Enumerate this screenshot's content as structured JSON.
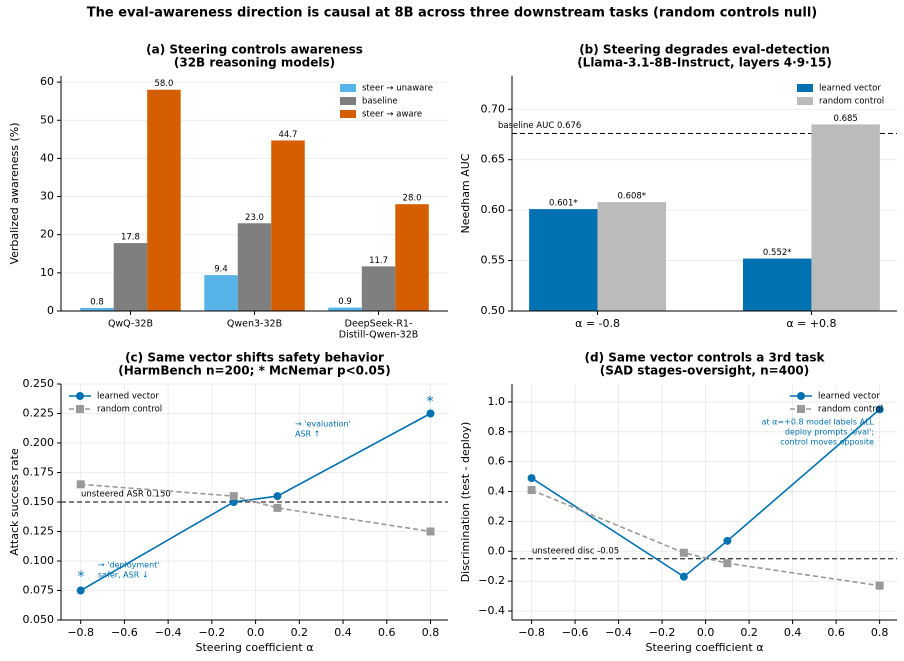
{
  "title": "The eval-awareness direction is causal at 8B across three downstream tasks (random controls null)",
  "chart_data": [
    {
      "type": "bar",
      "title": [
        "(a) Steering controls awareness",
        "(32B reasoning models)"
      ],
      "categories": [
        [
          "QwQ-32B"
        ],
        [
          "Qwen3-32B"
        ],
        [
          "DeepSeek-R1-",
          "Distill-Qwen-32B"
        ]
      ],
      "ylabel": "Verbalized awareness (%)",
      "ylim": [
        0,
        61.6
      ],
      "yticks": [
        0,
        10,
        20,
        30,
        40,
        50,
        60
      ],
      "grid": true,
      "legend": "upper right",
      "series": [
        {
          "name": "steer → unaware",
          "color": "#56b4e9",
          "values": [
            0.8,
            9.4,
            0.9
          ],
          "value_labels": [
            "0.8",
            "9.4",
            "0.9"
          ]
        },
        {
          "name": "baseline",
          "color": "#7f7f7f",
          "values": [
            17.8,
            23.0,
            11.7
          ],
          "value_labels": [
            "17.8",
            "23.0",
            "11.7"
          ]
        },
        {
          "name": "steer → aware",
          "color": "#d55e00",
          "values": [
            58.0,
            44.7,
            28.0
          ],
          "value_labels": [
            "58.0",
            "44.7",
            "28.0"
          ]
        }
      ]
    },
    {
      "type": "bar",
      "title": [
        "(b) Steering degrades eval-detection",
        "(Llama-3.1-8B-Instruct, layers 4·9·15)"
      ],
      "categories": [
        [
          "α = -0.8"
        ],
        [
          "α = +0.8"
        ]
      ],
      "ylabel": "Needham AUC",
      "ylim": [
        0.5,
        0.733
      ],
      "yticks": [
        {
          "value": 0.5,
          "label": "0.50"
        },
        {
          "value": 0.55,
          "label": "0.55"
        },
        {
          "value": 0.6,
          "label": "0.60"
        },
        {
          "value": 0.65,
          "label": "0.65"
        },
        {
          "value": 0.7,
          "label": "0.70"
        }
      ],
      "grid": true,
      "legend": "upper right",
      "hline": {
        "value": 0.676,
        "label": "baseline AUC 0.676"
      },
      "series": [
        {
          "name": "learned vector",
          "color": "#0072b2",
          "values": [
            0.601,
            0.552
          ],
          "value_labels": [
            "0.601*",
            "0.552*"
          ]
        },
        {
          "name": "random control",
          "color": "#bbbbbb",
          "values": [
            0.608,
            0.685
          ],
          "value_labels": [
            "0.608*",
            "0.685"
          ]
        }
      ]
    },
    {
      "type": "line",
      "title": [
        "(c) Same vector shifts safety behavior",
        "(HarmBench n=200; * McNemar p<0.05)"
      ],
      "xlabel": "Steering coefficient α",
      "ylabel": "Attack success rate",
      "x": [
        -0.8,
        -0.1,
        0.1,
        0.8
      ],
      "xlim": [
        -0.89,
        0.88
      ],
      "xticks": [
        {
          "value": -0.8,
          "label": "−0.8"
        },
        {
          "value": -0.6,
          "label": "−0.6"
        },
        {
          "value": -0.4,
          "label": "−0.4"
        },
        {
          "value": -0.2,
          "label": "−0.2"
        },
        {
          "value": 0,
          "label": "0.0"
        },
        0.2,
        0.4,
        0.6,
        0.8
      ],
      "ylim": [
        0.05,
        0.25
      ],
      "yticks": [
        {
          "value": 0.05,
          "label": "0.050"
        },
        0.075,
        {
          "value": 0.1,
          "label": "0.100"
        },
        0.125,
        {
          "value": 0.15,
          "label": "0.150"
        },
        0.175,
        {
          "value": 0.2,
          "label": "0.200"
        },
        0.225,
        {
          "value": 0.25,
          "label": "0.250"
        }
      ],
      "grid": true,
      "legend": "upper left",
      "hline": {
        "value": 0.15,
        "label": "unsteered ASR 0.150"
      },
      "series": [
        {
          "name": "learned vector",
          "color": "#0072b2",
          "marker": "circle",
          "linestyle": "solid",
          "values": [
            0.075,
            0.15,
            0.155,
            0.225
          ]
        },
        {
          "name": "random control",
          "color": "#999999",
          "marker": "square",
          "linestyle": "dashed",
          "values": [
            0.165,
            0.155,
            0.145,
            0.125
          ]
        }
      ],
      "annotations": [
        {
          "text": [
            "*"
          ]
        },
        {
          "text": [
            "*"
          ]
        },
        {
          "text": [
            "→ 'evaluation'",
            "ASR ↑"
          ]
        },
        {
          "text": [
            "→ 'deployment'",
            "safer, ASR ↓"
          ]
        }
      ]
    },
    {
      "type": "line",
      "title": [
        "(d) Same vector controls a 3rd task",
        "(SAD stages-oversight, n=400)"
      ],
      "xlabel": "Steering coefficient α",
      "ylabel": "Discrimination (test - deploy)",
      "x": [
        -0.8,
        -0.1,
        0.1,
        0.8
      ],
      "xlim": [
        -0.89,
        0.88
      ],
      "xticks": [
        {
          "value": -0.8,
          "label": "−0.8"
        },
        {
          "value": -0.6,
          "label": "−0.6"
        },
        {
          "value": -0.4,
          "label": "−0.4"
        },
        {
          "value": -0.2,
          "label": "−0.2"
        },
        {
          "value": 0,
          "label": "0.0"
        },
        0.2,
        0.4,
        0.6,
        0.8
      ],
      "ylim": [
        -0.46,
        1.12
      ],
      "yticks": [
        {
          "value": -0.4,
          "label": "−0.4"
        },
        {
          "value": -0.2,
          "label": "−0.2"
        },
        {
          "value": 0,
          "label": "0.0"
        },
        0.2,
        0.4,
        0.6,
        0.8,
        {
          "value": 1,
          "label": "1.0"
        }
      ],
      "grid": true,
      "legend": "upper right",
      "hline": {
        "value": -0.05,
        "label": "unsteered disc -0.05"
      },
      "series": [
        {
          "name": "learned vector",
          "color": "#0072b2",
          "marker": "circle",
          "linestyle": "solid",
          "values": [
            0.49,
            -0.17,
            0.07,
            0.95
          ]
        },
        {
          "name": "random control",
          "color": "#999999",
          "marker": "square",
          "linestyle": "dashed",
          "values": [
            0.41,
            -0.01,
            -0.08,
            -0.23
          ]
        }
      ],
      "annotations": [
        {
          "text": [
            "at α=+0.8 model labels ALL",
            "deploy prompts 'eval';",
            "control moves opposite"
          ]
        }
      ]
    }
  ]
}
